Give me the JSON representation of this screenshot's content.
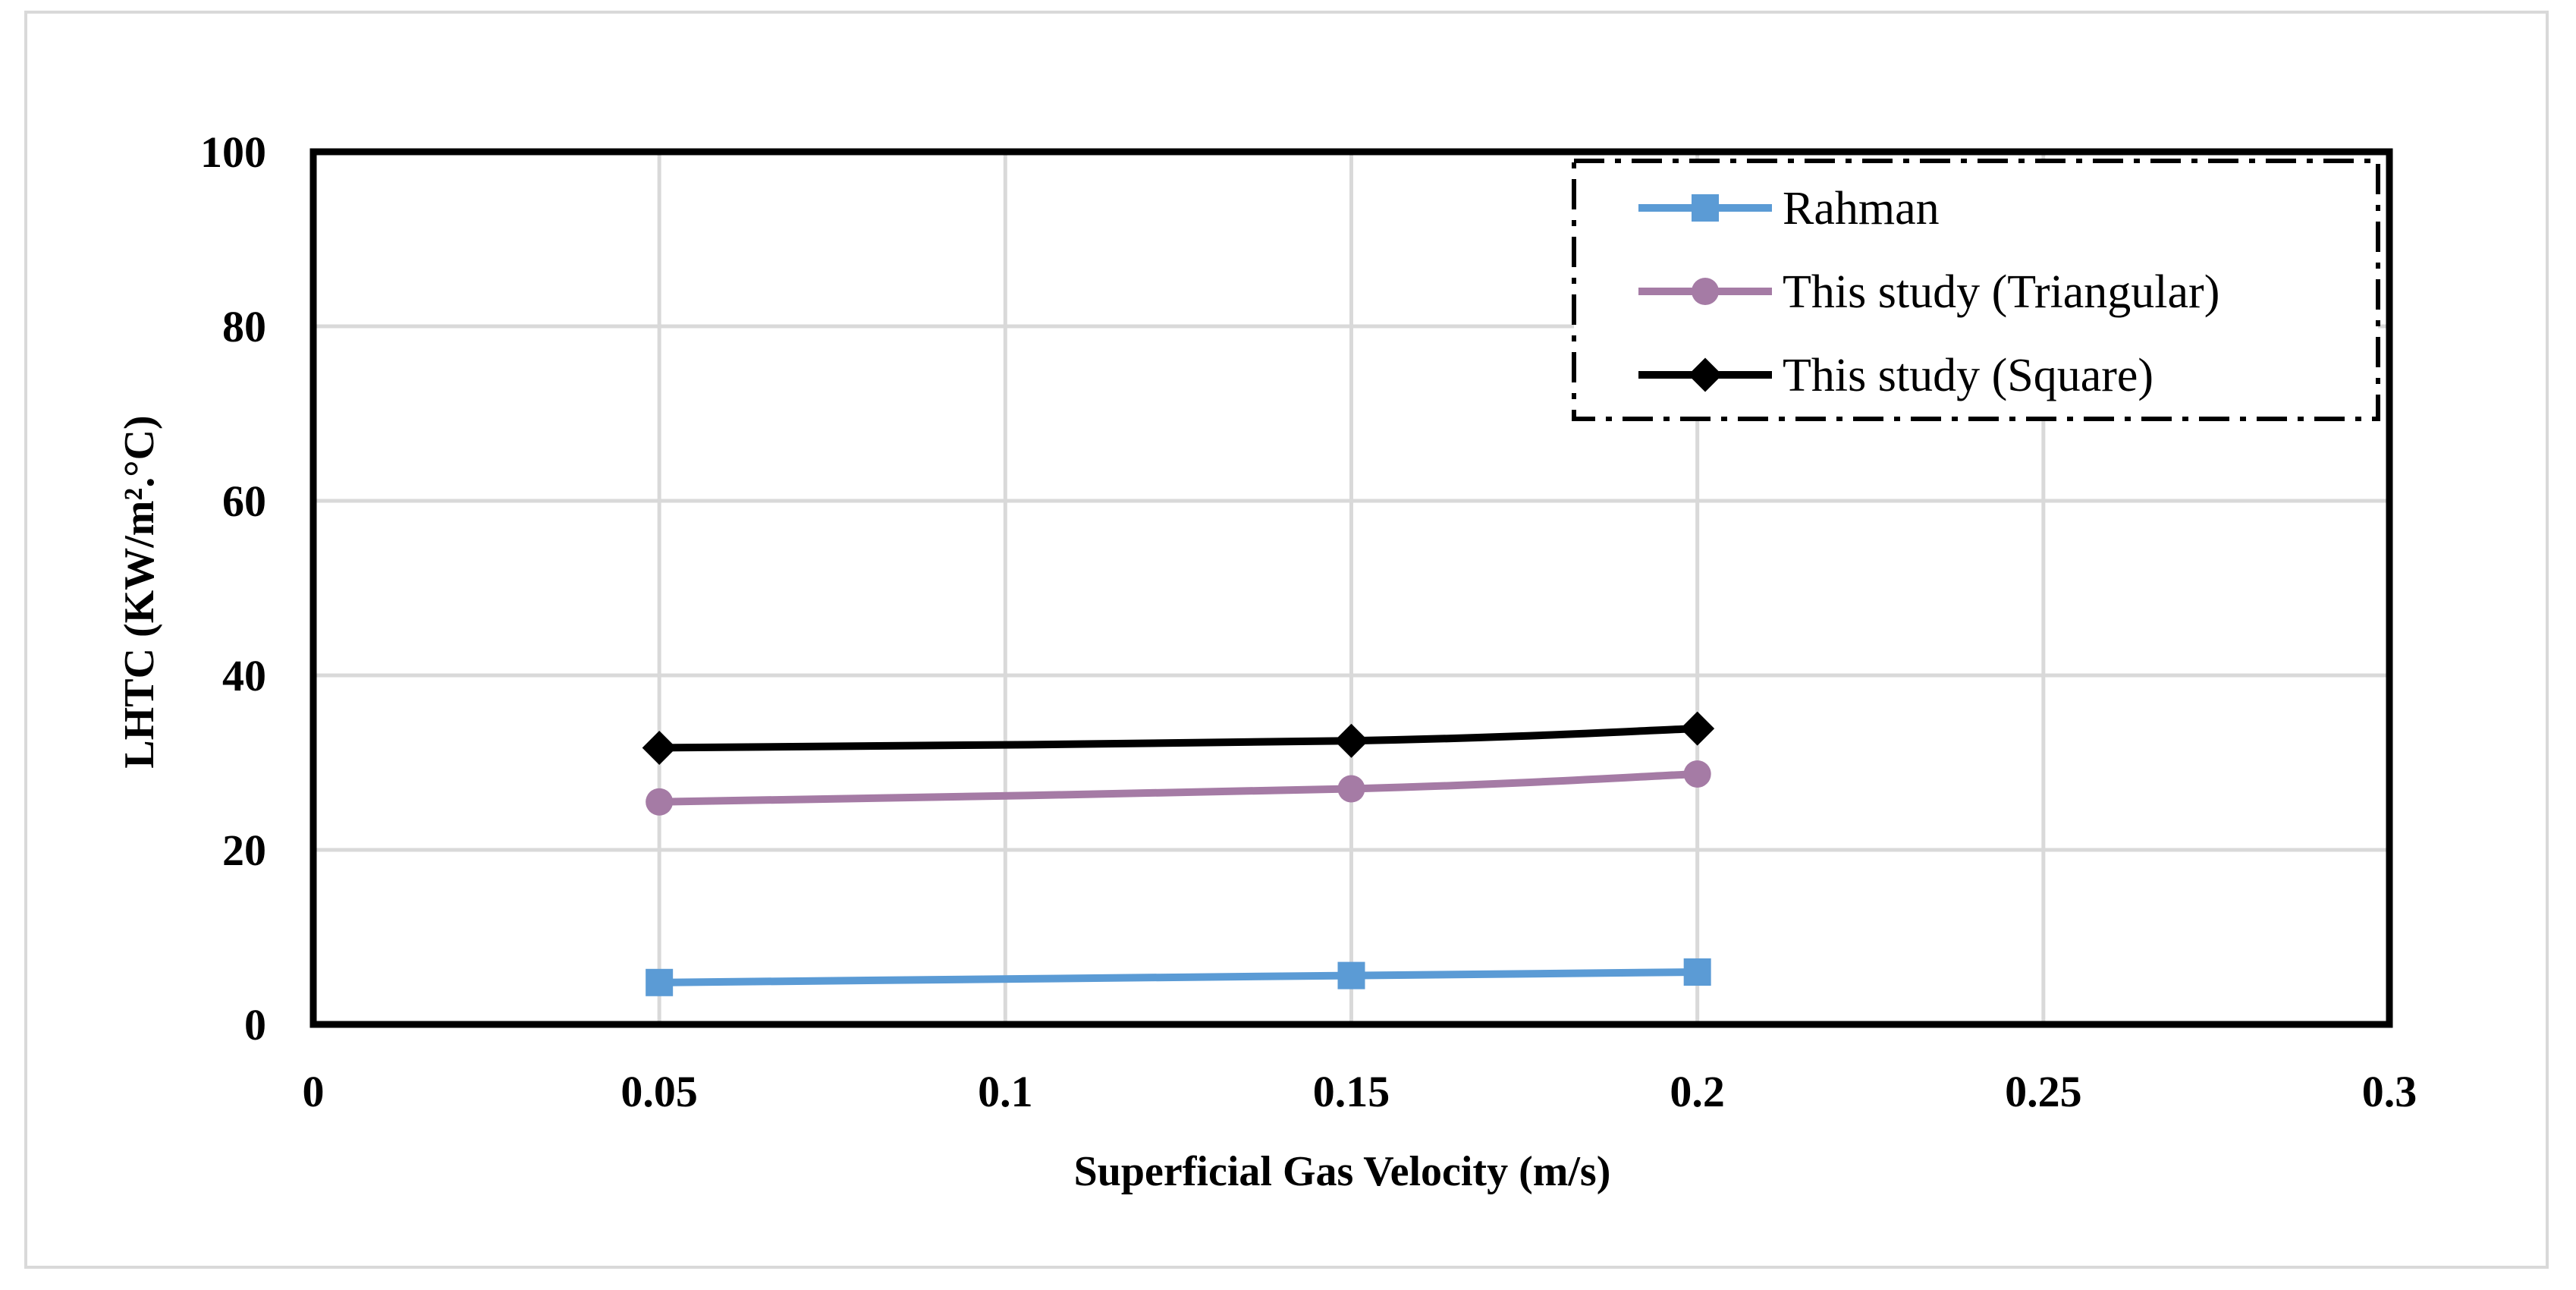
{
  "chart_data": {
    "type": "line",
    "title": "",
    "xlabel": "Superficial Gas Velocity (m/s)",
    "ylabel": "LHTC (KW/m².°C)",
    "xlim": [
      0,
      0.3
    ],
    "ylim": [
      0,
      100
    ],
    "x_ticks": [
      0,
      0.05,
      0.1,
      0.15,
      0.2,
      0.25,
      0.3
    ],
    "x_tick_labels": [
      "0",
      "0.05",
      "0.1",
      "0.15",
      "0.2",
      "0.25",
      "0.3"
    ],
    "y_ticks": [
      0,
      20,
      40,
      60,
      80,
      100
    ],
    "y_tick_labels": [
      "0",
      "20",
      "40",
      "60",
      "80",
      "100"
    ],
    "grid": true,
    "legend_position": "top-right",
    "series": [
      {
        "name": "Rahman",
        "x": [
          0.05,
          0.15,
          0.2
        ],
        "values": [
          4.8,
          5.6,
          6.0
        ],
        "color": "#5b9bd5",
        "marker": "square"
      },
      {
        "name": "This study (Triangular)",
        "x": [
          0.05,
          0.15,
          0.2
        ],
        "values": [
          25.5,
          27.0,
          28.7
        ],
        "color": "#a57ba5",
        "marker": "circle"
      },
      {
        "name": "This study (Square)",
        "x": [
          0.05,
          0.15,
          0.2
        ],
        "values": [
          31.7,
          32.5,
          33.9
        ],
        "color": "#000000",
        "marker": "diamond"
      }
    ]
  }
}
